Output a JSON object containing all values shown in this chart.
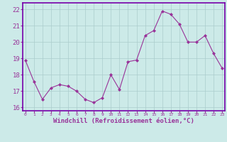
{
  "x": [
    0,
    1,
    2,
    3,
    4,
    5,
    6,
    7,
    8,
    9,
    10,
    11,
    12,
    13,
    14,
    15,
    16,
    17,
    18,
    19,
    20,
    21,
    22,
    23
  ],
  "y": [
    18.9,
    17.6,
    16.5,
    17.2,
    17.4,
    17.3,
    17.0,
    16.5,
    16.3,
    16.6,
    18.0,
    17.1,
    18.8,
    18.9,
    20.4,
    20.7,
    21.9,
    21.7,
    21.1,
    20.0,
    20.0,
    20.4,
    19.3,
    18.4
  ],
  "line_color": "#993399",
  "marker": "D",
  "marker_size": 2,
  "linewidth": 0.8,
  "xlabel": "Windchill (Refroidissement éolien,°C)",
  "xlabel_fontsize": 6.5,
  "ylim": [
    15.8,
    22.4
  ],
  "xlim": [
    -0.3,
    23.3
  ],
  "yticks": [
    16,
    17,
    18,
    19,
    20,
    21,
    22
  ],
  "xticks": [
    0,
    1,
    2,
    3,
    4,
    5,
    6,
    7,
    8,
    9,
    10,
    11,
    12,
    13,
    14,
    15,
    16,
    17,
    18,
    19,
    20,
    21,
    22,
    23
  ],
  "xtick_fontsize": 4.5,
  "ytick_fontsize": 6.5,
  "bg_color": "#cceae8",
  "grid_color": "#aacccc",
  "border_color": "#7700aa"
}
